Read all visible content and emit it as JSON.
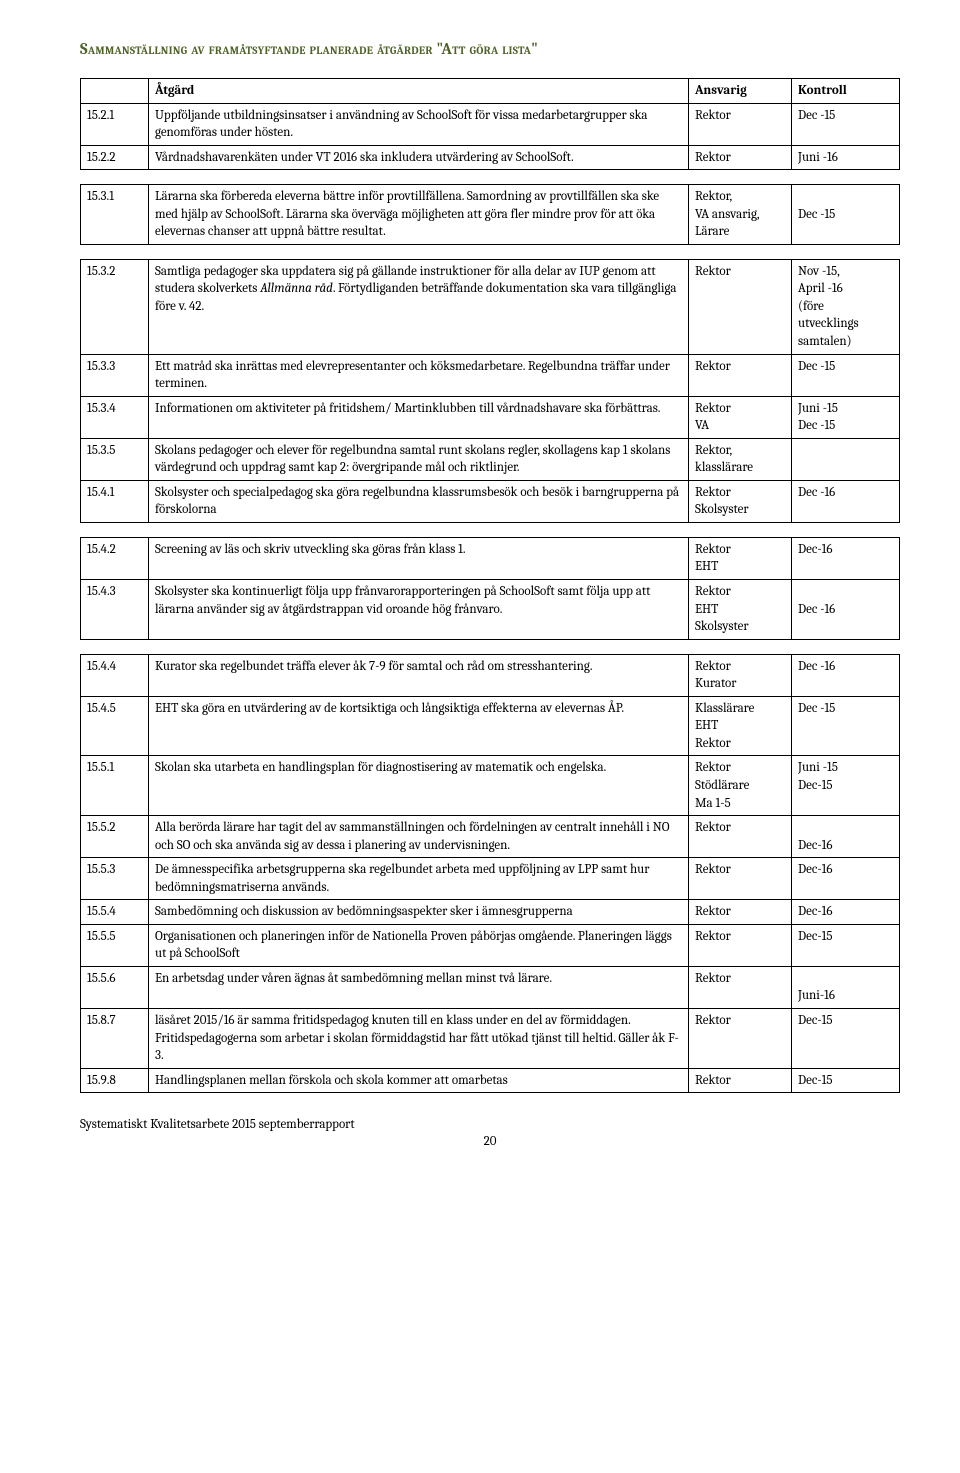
{
  "heading": "Sammanställning av framåtsyftande planerade åtgärder \"Att göra lista\"",
  "columns": {
    "c0": "",
    "c1": "Åtgärd",
    "c2": "Ansvarig",
    "c3": "Kontroll"
  },
  "t1": {
    "r0": {
      "id": "15.2.1",
      "action": "Uppföljande utbildningsinsatser i användning av SchoolSoft för vissa medarbetargrupper ska genomföras under hösten.",
      "resp": "Rektor",
      "ctrl": "Dec -15"
    },
    "r1": {
      "id": "15.2.2",
      "action": "Vårdnadshavarenkäten under VT 2016 ska inkludera utvärdering av SchoolSoft.",
      "resp": "Rektor",
      "ctrl": "Juni -16"
    }
  },
  "t2": {
    "r0": {
      "id": "15.3.1",
      "action": "Lärarna ska förbereda eleverna bättre inför provtillfällena. Samordning av provtillfällen ska ske med hjälp av SchoolSoft. Lärarna ska överväga möjligheten att göra fler mindre prov för att öka elevernas chanser att uppnå bättre resultat.",
      "resp": "Rektor,\nVA ansvarig,\nLärare",
      "ctrl": "\nDec -15"
    }
  },
  "t3": {
    "r0": {
      "id": "15.3.2",
      "action_pre": "Samtliga pedagoger ska uppdatera sig på gällande instruktioner för alla delar av IUP genom att studera skolverkets ",
      "action_italic": "Allmänna råd",
      "action_post": ". Förtydliganden beträffande dokumentation ska vara tillgängliga före v. 42.",
      "resp": "Rektor",
      "ctrl": "Nov -15,\nApril -16\n(före\nutvecklings\nsamtalen)"
    },
    "r1": {
      "id": "15.3.3",
      "action": "Ett matråd ska inrättas med elevrepresentanter och köksmedarbetare. Regelbundna träffar under terminen.",
      "resp": "Rektor",
      "ctrl": "Dec -15"
    },
    "r2": {
      "id": "15.3.4",
      "action": "Informationen om aktiviteter på fritidshem/ Martinklubben till vårdnadshavare ska förbättras.",
      "resp": "Rektor\nVA",
      "ctrl": "Juni -15\nDec -15"
    },
    "r3": {
      "id": "15.3.5",
      "action": "Skolans pedagoger och elever för regelbundna samtal runt skolans regler, skollagens kap 1 skolans värdegrund och uppdrag samt kap 2: övergripande mål och riktlinjer.",
      "resp": "Rektor,\nklasslärare",
      "ctrl": ""
    },
    "r4": {
      "id": "15.4.1",
      "action": "Skolsyster och specialpedagog ska göra regelbundna klassrumsbesök och besök i barngrupperna på förskolorna",
      "resp": "Rektor\nSkolsyster",
      "ctrl": "Dec -16"
    }
  },
  "t4": {
    "r0": {
      "id": "15.4.2",
      "action": "Screening av läs och skriv utveckling ska göras från klass 1.",
      "resp": "Rektor\nEHT",
      "ctrl": "Dec-16"
    },
    "r1": {
      "id": "15.4.3",
      "action": "Skolsyster ska kontinuerligt följa upp frånvarorapporteringen på SchoolSoft samt följa upp att lärarna använder sig av åtgärdstrappan vid oroande hög frånvaro.",
      "resp": "Rektor\nEHT\nSkolsyster",
      "ctrl": "\nDec -16"
    }
  },
  "t5": {
    "r0": {
      "id": "15.4.4",
      "action": "Kurator ska regelbundet träffa elever åk 7-9 för samtal och råd om stresshantering.",
      "resp": "Rektor\nKurator",
      "ctrl": "Dec -16"
    },
    "r1": {
      "id": "15.4.5",
      "action": "EHT ska göra en utvärdering av de kortsiktiga och långsiktiga effekterna av elevernas ÅP.",
      "resp": "Klasslärare\nEHT\nRektor",
      "ctrl": "Dec -15"
    },
    "r2": {
      "id": "15.5.1",
      "action": "Skolan ska utarbeta en handlingsplan för diagnostisering av matematik och engelska.",
      "resp": "Rektor\nStödlärare\nMa 1-5",
      "ctrl": "Juni -15\nDec-15"
    },
    "r3": {
      "id": "15.5.2",
      "action": "Alla berörda lärare har tagit del av sammanställningen och fördelningen av centralt innehåll i NO och SO och ska använda sig av dessa i planering av undervisningen.",
      "resp": "Rektor",
      "ctrl": "\nDec-16"
    },
    "r4": {
      "id": "15.5.3",
      "action": "De ämnesspecifika arbetsgrupperna ska regelbundet arbeta med uppföljning av LPP samt hur bedömningsmatriserna används.",
      "resp": "Rektor",
      "ctrl": "Dec-16"
    },
    "r5": {
      "id": "15.5.4",
      "action": "Sambedömning och diskussion av bedömningsaspekter sker i ämnesgrupperna",
      "resp": "Rektor",
      "ctrl": "Dec-16"
    },
    "r6": {
      "id": "15.5.5",
      "action": "Organisationen och planeringen inför de Nationella Proven påbörjas omgående. Planeringen läggs ut på SchoolSoft",
      "resp": "Rektor",
      "ctrl": "Dec-15"
    },
    "r7": {
      "id": "15.5.6",
      "action": "En arbetsdag under våren ägnas åt sambedömning mellan minst två lärare.",
      "resp": "Rektor",
      "ctrl": "\nJuni-16"
    },
    "r8": {
      "id": "15.8.7",
      "action": "läsåret 2015/16 är samma fritidspedagog knuten till en klass under en del av förmiddagen. Fritidspedagogerna som arbetar i skolan förmiddagstid har fått utökad tjänst till heltid. Gäller åk F-3.",
      "resp": "Rektor",
      "ctrl": "Dec-15"
    },
    "r9": {
      "id": "15.9.8",
      "action": "Handlingsplanen mellan förskola och skola kommer att omarbetas",
      "resp": "Rektor",
      "ctrl": "Dec-15"
    }
  },
  "footer": {
    "title": "Systematiskt Kvalitetsarbete 2015 septemberrapport",
    "page": "20"
  }
}
